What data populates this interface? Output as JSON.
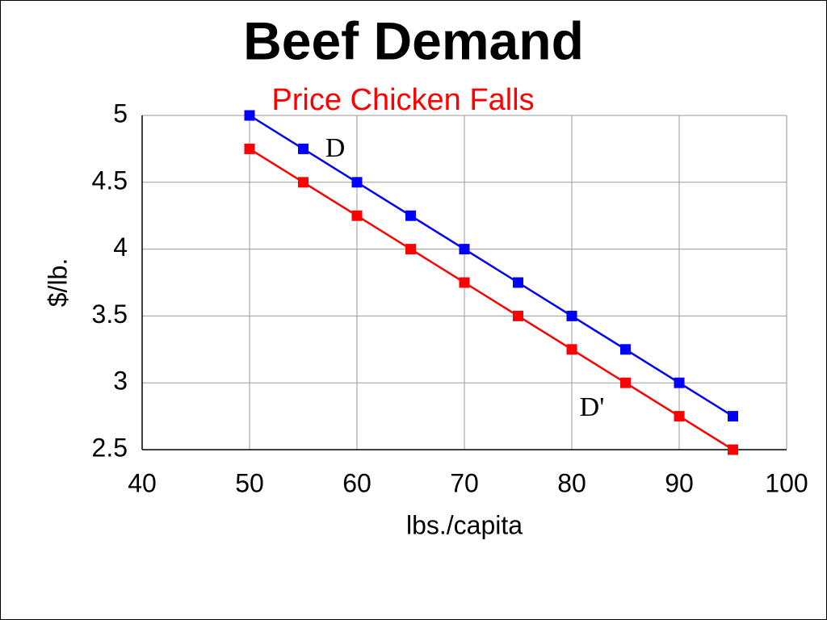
{
  "chart_data": {
    "type": "line",
    "title": "Beef Demand",
    "subtitle": "Price Chicken Falls",
    "x_label": "lbs./capita",
    "y_label": "$/lb.",
    "x": [
      50,
      55,
      60,
      65,
      70,
      75,
      80,
      85,
      90,
      95
    ],
    "series": [
      {
        "name": "D",
        "color": "#0000ff",
        "values": [
          5,
          4.75,
          4.5,
          4.25,
          4,
          3.75,
          3.5,
          3.25,
          3,
          2.75
        ]
      },
      {
        "name": "D'",
        "color": "#ff0000",
        "values": [
          4.75,
          4.5,
          4.25,
          4,
          3.75,
          3.5,
          3.25,
          3,
          2.75,
          2.5
        ]
      }
    ],
    "xlim": [
      40,
      100
    ],
    "xticks": [
      40,
      50,
      60,
      70,
      80,
      90,
      100
    ],
    "ylim": [
      2.5,
      5
    ],
    "yticks": [
      2.5,
      3,
      3.5,
      4,
      4.5,
      5
    ],
    "grid": true
  }
}
